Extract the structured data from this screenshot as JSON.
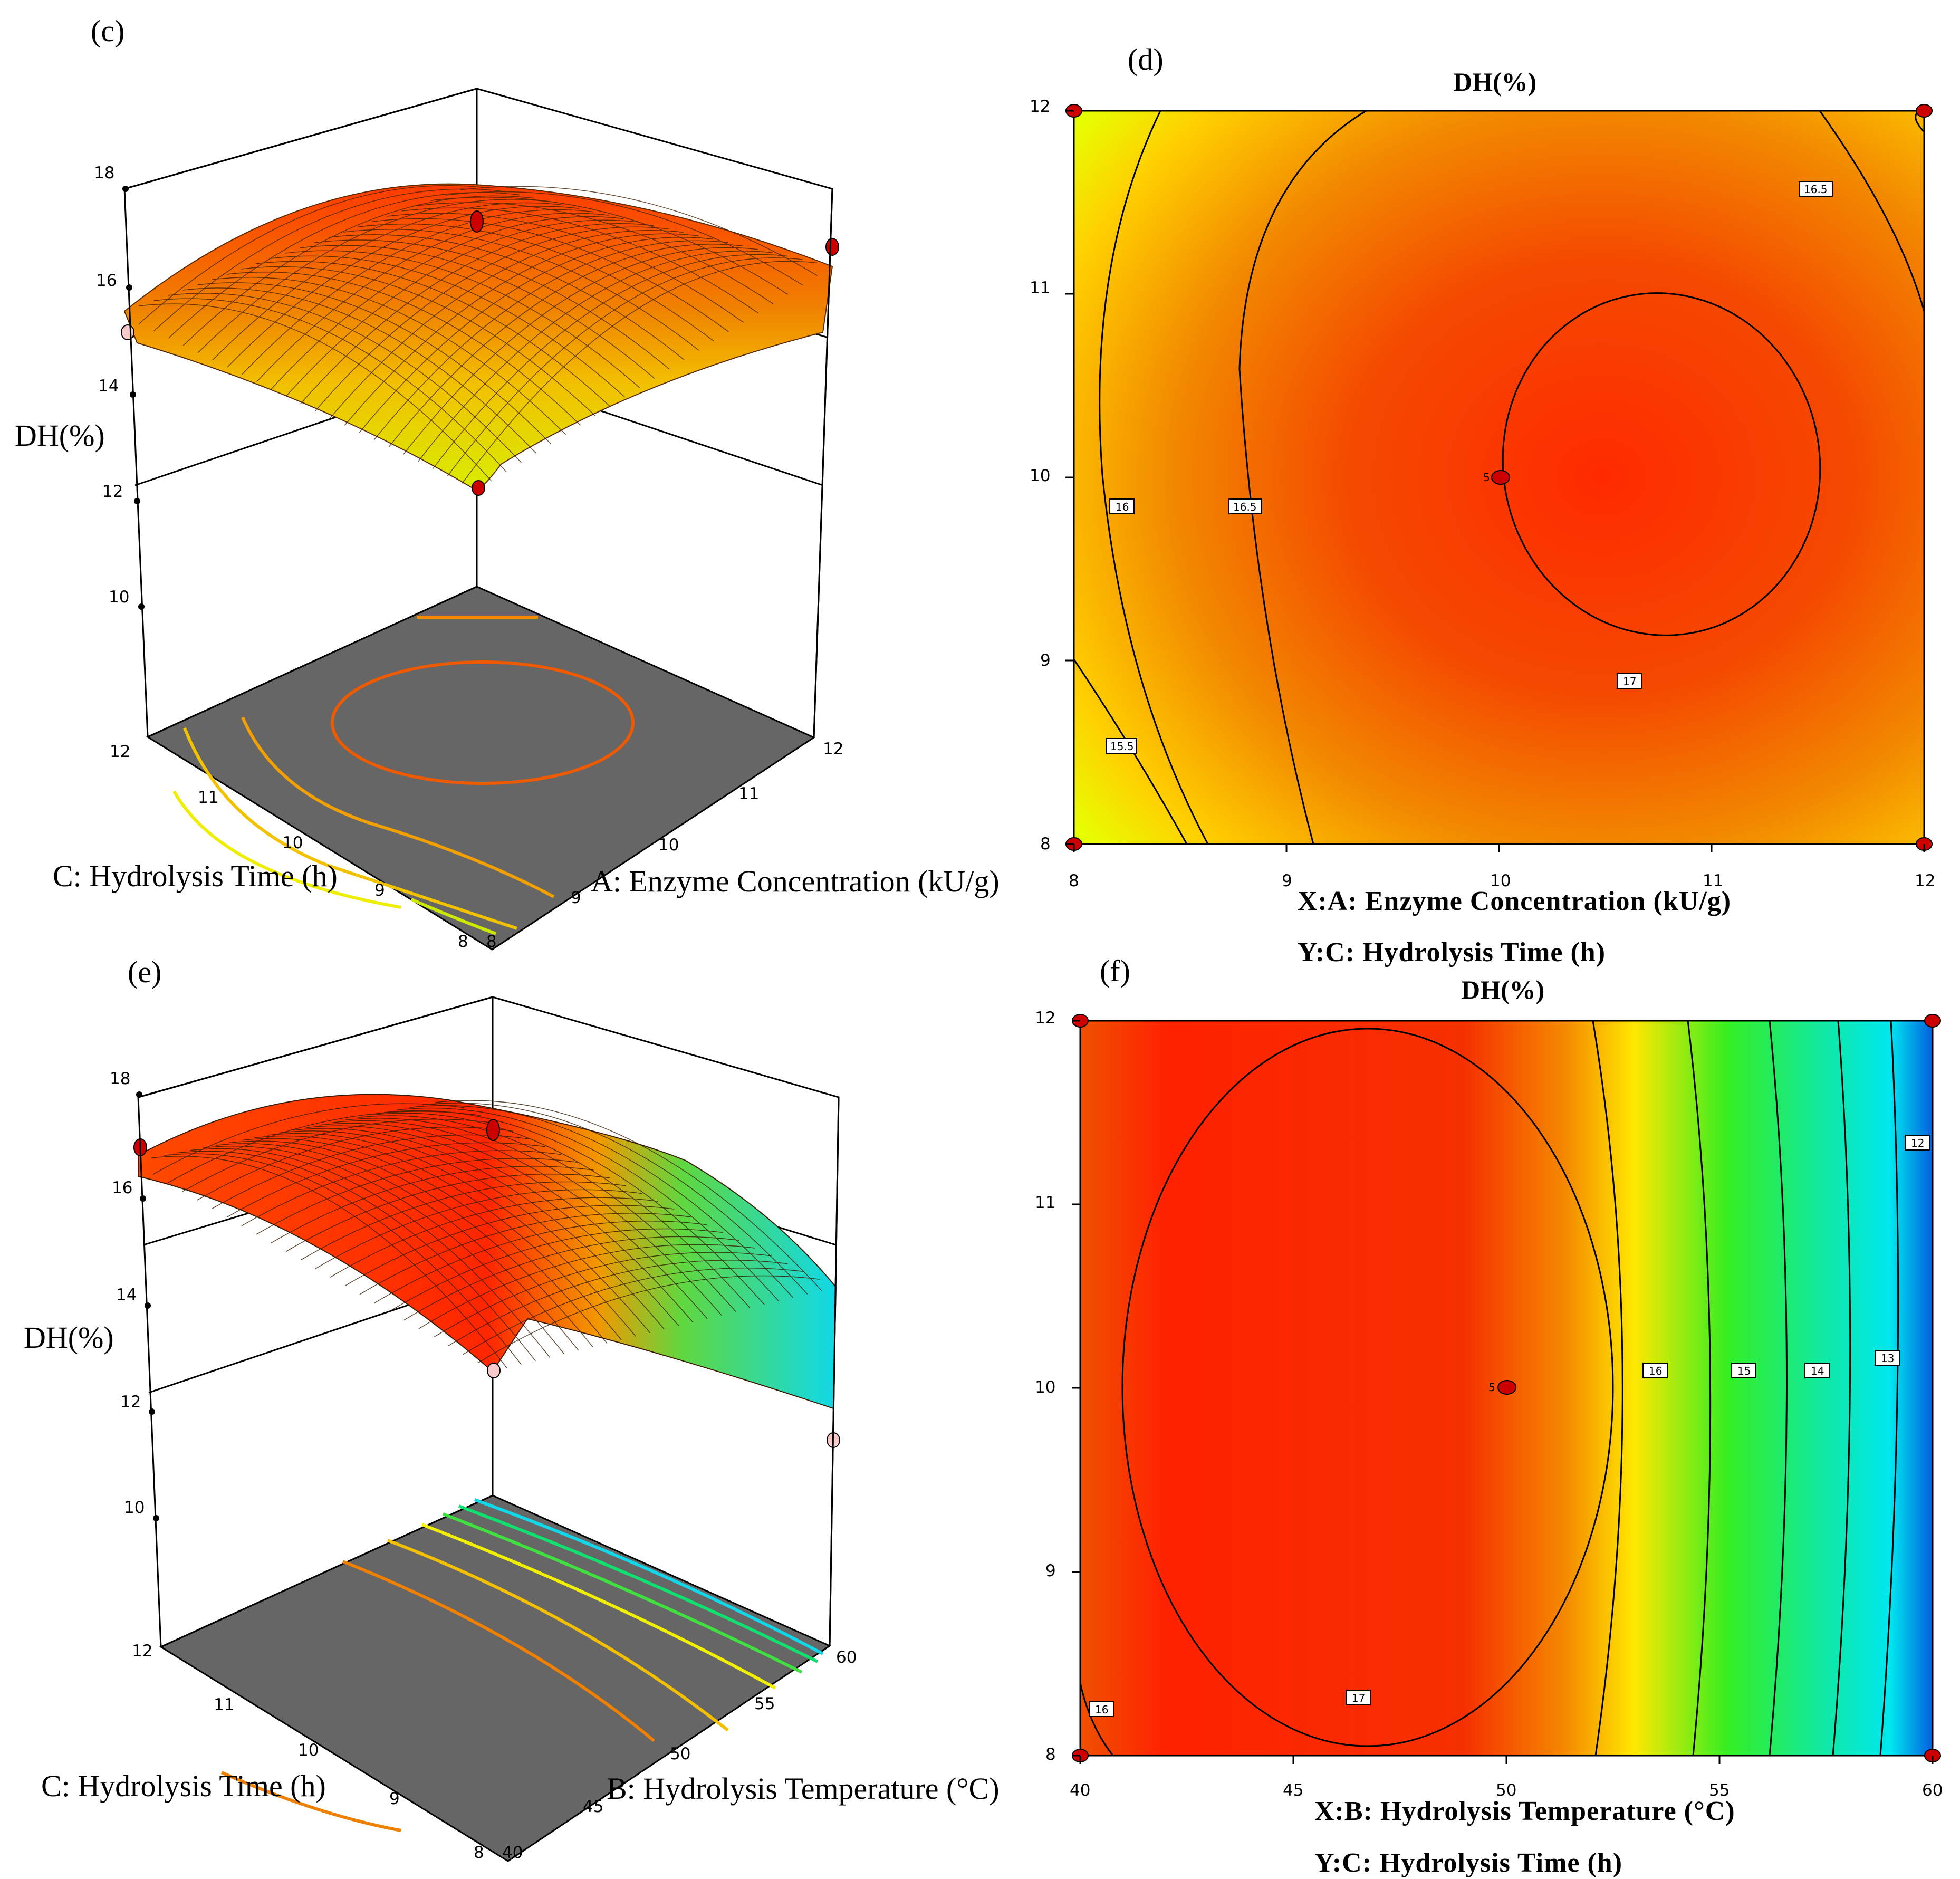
{
  "colors": {
    "floor": "#666666",
    "design_point_red": "#cc0000",
    "design_point_pink": "#f7c9c9",
    "grid": "#000000"
  },
  "charts": [
    {
      "id": "c",
      "panel_label": "(c)",
      "type": "surface3d",
      "z_axis_label": "DH(%)",
      "z_ticks": [
        "10",
        "12",
        "14",
        "16",
        "18"
      ],
      "zlim": [
        8,
        18
      ],
      "left_axis_label": "C: Hydrolysis Time (h)",
      "left_axis_ticks": [
        "12",
        "11",
        "10",
        "9",
        "8"
      ],
      "right_axis_label": "A: Enzyme Concentration (kU/g)",
      "right_axis_ticks": [
        "8",
        "9",
        "10",
        "11",
        "12"
      ],
      "chart_data": {
        "type": "surface3d",
        "x_name": "A: Enzyme Concentration (kU/g)",
        "y_name": "C: Hydrolysis Time (h)",
        "z_name": "DH(%)",
        "x_range": [
          8,
          12
        ],
        "y_range": [
          8,
          12
        ],
        "z_range": [
          8,
          18
        ],
        "design_points": [
          {
            "x": 10,
            "y": 10,
            "z": 17.1
          },
          {
            "x": 8,
            "y": 12,
            "z": 15.5
          },
          {
            "x": 12,
            "y": 12,
            "z": 16.4
          },
          {
            "x": 8,
            "y": 8,
            "z": 13.0
          }
        ]
      }
    },
    {
      "id": "d",
      "panel_label": "(d)",
      "type": "contour",
      "title": "DH(%)",
      "x_ticks": [
        "8",
        "9",
        "10",
        "11",
        "12"
      ],
      "y_ticks": [
        "8",
        "9",
        "10",
        "11",
        "12"
      ],
      "x_caption": "X:A: Enzyme Concentration (kU/g)",
      "y_caption": "Y:C: Hydrolysis Time (h)",
      "center_label": "5",
      "contour_labels": [
        "15.5",
        "16",
        "16.5",
        "16.5",
        "17"
      ],
      "chart_data": {
        "type": "contour",
        "x_name": "A: Enzyme Concentration (kU/g)",
        "y_name": "C: Hydrolysis Time (h)",
        "z_name": "DH(%)",
        "xlim": [
          8,
          12
        ],
        "ylim": [
          8,
          12
        ],
        "levels": [
          15.5,
          16,
          16.5,
          17
        ],
        "center_point": {
          "x": 10,
          "y": 10,
          "replicates": 5
        },
        "corner_points": [
          [
            8,
            8
          ],
          [
            8,
            12
          ],
          [
            12,
            8
          ],
          [
            12,
            12
          ]
        ]
      }
    },
    {
      "id": "e",
      "panel_label": "(e)",
      "type": "surface3d",
      "z_axis_label": "DH(%)",
      "z_ticks": [
        "10",
        "12",
        "14",
        "16",
        "18"
      ],
      "zlim": [
        8,
        18
      ],
      "left_axis_label": "C: Hydrolysis Time (h)",
      "left_axis_ticks": [
        "12",
        "11",
        "10",
        "9",
        "8"
      ],
      "right_axis_label": "B: Hydrolysis Temperature (°C)",
      "right_axis_ticks": [
        "40",
        "45",
        "50",
        "55",
        "60"
      ],
      "chart_data": {
        "type": "surface3d",
        "x_name": "B: Hydrolysis Temperature (°C)",
        "y_name": "C: Hydrolysis Time (h)",
        "z_name": "DH(%)",
        "x_range": [
          40,
          60
        ],
        "y_range": [
          8,
          12
        ],
        "z_range": [
          8,
          18
        ],
        "design_points": [
          {
            "x": 50,
            "y": 10,
            "z": 17.0
          },
          {
            "x": 40,
            "y": 12,
            "z": 16.6
          },
          {
            "x": 40,
            "y": 8,
            "z": 16.0
          },
          {
            "x": 60,
            "y": 8,
            "z": 12.0
          }
        ]
      }
    },
    {
      "id": "f",
      "panel_label": "(f)",
      "type": "contour",
      "title": "DH(%)",
      "x_ticks": [
        "40",
        "45",
        "50",
        "55",
        "60"
      ],
      "y_ticks": [
        "8",
        "9",
        "10",
        "11",
        "12"
      ],
      "x_caption": "X:B: Hydrolysis Temperature (°C)",
      "y_caption": "Y:C: Hydrolysis Time (h)",
      "center_label": "5",
      "contour_labels": [
        "16",
        "17",
        "16",
        "15",
        "14",
        "13",
        "12"
      ],
      "chart_data": {
        "type": "contour",
        "x_name": "B: Hydrolysis Temperature (°C)",
        "y_name": "C: Hydrolysis Time (h)",
        "z_name": "DH(%)",
        "xlim": [
          40,
          60
        ],
        "ylim": [
          8,
          12
        ],
        "levels": [
          12,
          13,
          14,
          15,
          16,
          17
        ],
        "center_point": {
          "x": 50,
          "y": 10,
          "replicates": 5
        },
        "corner_points": [
          [
            40,
            8
          ],
          [
            40,
            12
          ],
          [
            60,
            8
          ],
          [
            60,
            12
          ]
        ]
      }
    }
  ]
}
